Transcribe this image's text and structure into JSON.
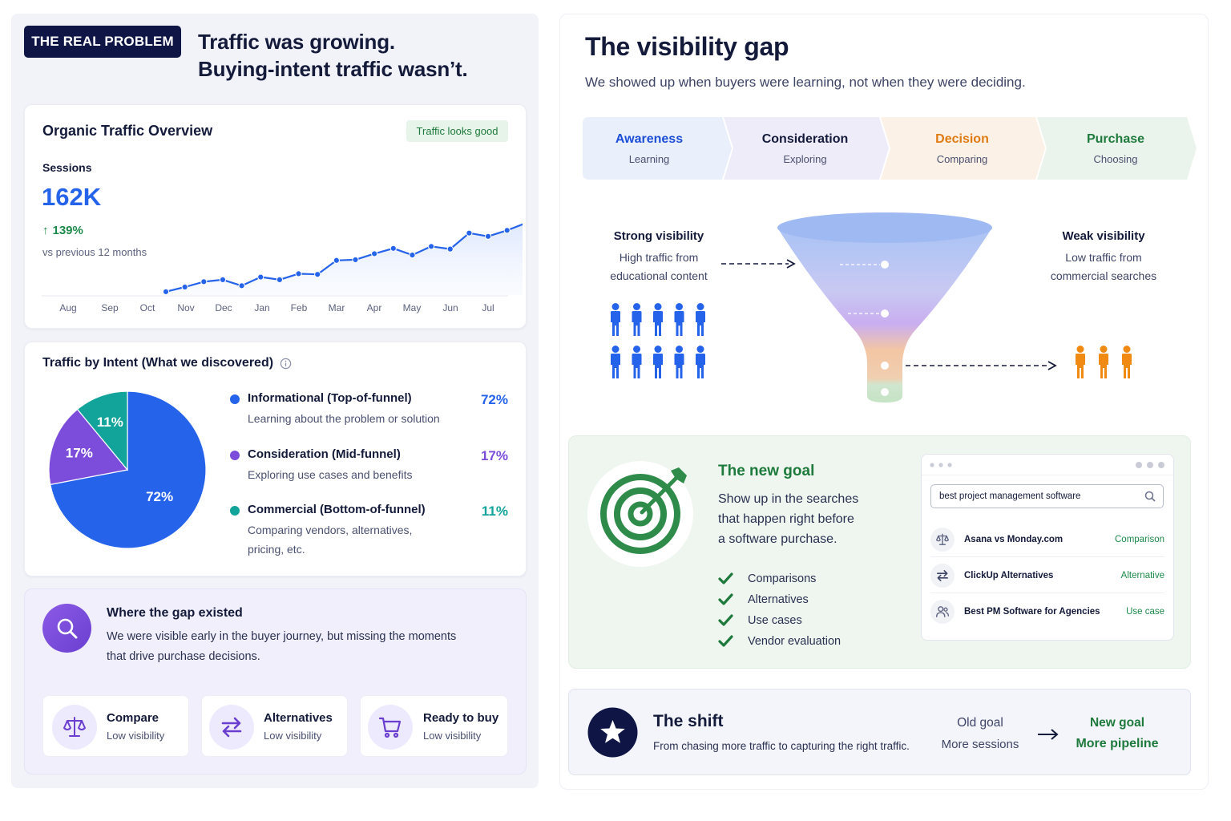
{
  "hero": {
    "badge": "THE REAL PROBLEM",
    "line1": "Traffic was growing.",
    "line2": "Buying-intent traffic wasn’t."
  },
  "traffic_card": {
    "title": "Organic Traffic Overview",
    "status_badge": "Traffic looks good",
    "metric_label": "Sessions",
    "metric_value": "162K",
    "growth": "139%",
    "growth_arrow": "↑",
    "comparison": "vs previous 12 months"
  },
  "intent_card": {
    "title": "Traffic by Intent (What we discovered)",
    "info_icon": "info-icon",
    "legend": [
      {
        "title": "Informational (Top-of-funnel)",
        "desc": "Learning about the problem or solution",
        "desc2": "",
        "pct": "72%",
        "color": "#2563eb"
      },
      {
        "title": "Consideration (Mid-funnel)",
        "desc": "Exploring use cases and benefits",
        "desc2": "",
        "pct": "17%",
        "color": "#7c4ddb"
      },
      {
        "title": "Commercial (Bottom-of-funnel)",
        "desc": "Comparing vendors, alternatives,",
        "desc2": "pricing, etc.",
        "pct": "11%",
        "color": "#12a39a"
      }
    ]
  },
  "gap": {
    "title": "Where the gap existed",
    "desc1": "We were visible early in the buyer journey, but missing the moments",
    "desc2": "that drive purchase decisions.",
    "items": [
      {
        "title": "Compare",
        "sub": "Low visibility",
        "icon": "scale-icon"
      },
      {
        "title": "Alternatives",
        "sub": "Low visibility",
        "icon": "swap-arrows-icon"
      },
      {
        "title": "Ready to buy",
        "sub": "Low visibility",
        "icon": "cart-icon"
      }
    ]
  },
  "visibility": {
    "title": "The visibility gap",
    "subtitle": "We showed up when buyers were learning, not when they were deciding.",
    "stages": [
      {
        "name": "Awareness",
        "sub": "Learning",
        "color": "#1d4ed8",
        "bg": "#e9effb"
      },
      {
        "name": "Consideration",
        "sub": "Exploring",
        "color": "#141a3a",
        "bg": "#efecfa"
      },
      {
        "name": "Decision",
        "sub": "Comparing",
        "color": "#e07b12",
        "bg": "#fcf1e6"
      },
      {
        "name": "Purchase",
        "sub": "Choosing",
        "color": "#1e7a3c",
        "bg": "#ebf4ec"
      }
    ],
    "strong_title": "Strong visibility",
    "strong_desc1": "High traffic from",
    "strong_desc2": "educational content",
    "weak_title": "Weak visibility",
    "weak_desc1": "Low traffic from",
    "weak_desc2": "commercial searches"
  },
  "new_goal": {
    "title": "The new goal",
    "desc1": "Show up in the searches",
    "desc2": "that happen right before",
    "desc3": "a software purchase.",
    "checks": [
      "Comparisons",
      "Alternatives",
      "Use cases",
      "Vendor evaluation"
    ],
    "search_query": "best project management software",
    "results": [
      {
        "title": "Asana vs Monday.com",
        "tag": "Comparison",
        "icon": "scale-icon"
      },
      {
        "title": "ClickUp Alternatives",
        "tag": "Alternative",
        "icon": "swap-arrows-icon"
      },
      {
        "title": "Best PM Software for Agencies",
        "tag": "Use case",
        "icon": "users-icon"
      }
    ]
  },
  "shift": {
    "title": "The shift",
    "desc": "From chasing more traffic to capturing the right traffic.",
    "old_label": "Old goal",
    "old_value": "More sessions",
    "new_label": "New goal",
    "new_value": "More pipeline"
  },
  "chart_data": [
    {
      "type": "area",
      "categories": [
        "Aug",
        "Sep",
        "Oct",
        "Nov",
        "Dec",
        "Jan",
        "Feb",
        "Mar",
        "Apr",
        "May",
        "Jun",
        "Jul"
      ],
      "x": [
        0,
        0.5,
        1,
        1.5,
        2,
        2.5,
        3,
        3.5,
        4,
        4.5,
        5,
        5.5,
        6,
        6.5,
        7,
        7.5,
        8,
        8.5,
        9,
        9.5,
        10,
        10.25,
        10.5,
        11,
        11.5
      ],
      "values": [
        5,
        12,
        20,
        23,
        14,
        27,
        23,
        32,
        31,
        52,
        53,
        62,
        70,
        60,
        73,
        69,
        93,
        88,
        97,
        108,
        121,
        127,
        144,
        161,
        173
      ],
      "title": "",
      "xlabel": "",
      "ylabel": "",
      "ylim": [
        0,
        190
      ],
      "grid": false
    },
    {
      "type": "pie",
      "labels": [
        "Informational (Top-of-funnel)",
        "Consideration (Mid-funnel)",
        "Commercial (Bottom-of-funnel)"
      ],
      "values": [
        72,
        17,
        11
      ],
      "data_labels": [
        "72%",
        "17%",
        "11%"
      ],
      "colors": [
        "#2563eb",
        "#7c4ddb",
        "#12a39a"
      ]
    }
  ]
}
